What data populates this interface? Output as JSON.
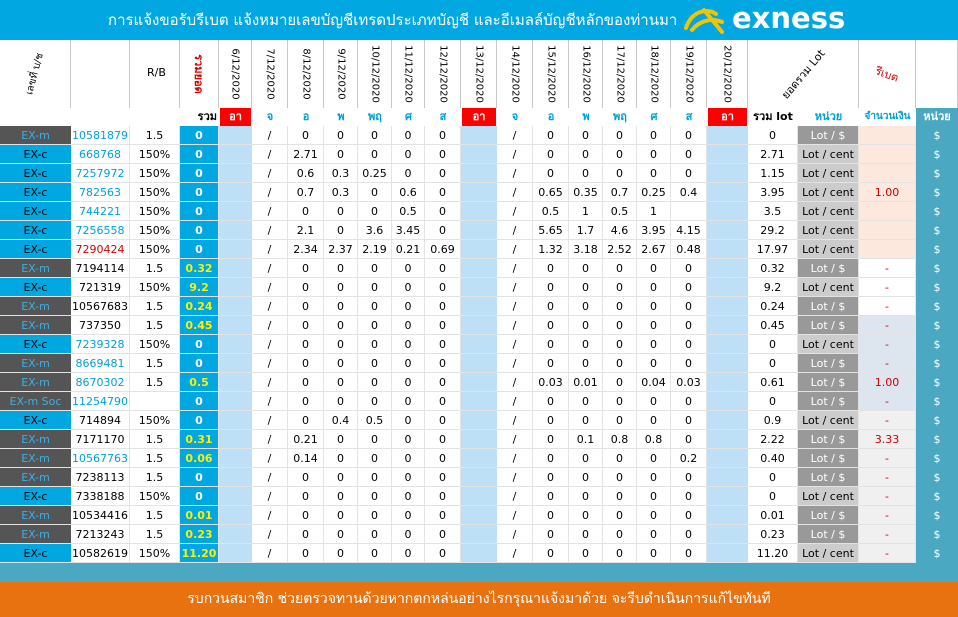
{
  "header": {
    "title": "การแจ้งขอรับรีเบต  แจ้งหมายเลขบัญชีเทรดประเภทบัญชี และอีเมลล์บัญชีหลักของท่านมา",
    "brand": "exness",
    "brand_color": "#00a7e1"
  },
  "columns": {
    "account": "เลขที่ บ/ช",
    "rb": "R/B",
    "total_lot_vertical": "รวมยอด",
    "dates": [
      "6/12/2020",
      "7/12/2020",
      "8/12/2020",
      "9/12/2020",
      "10/12/2020",
      "11/12/2020",
      "12/12/2020",
      "13/12/2020",
      "14/12/2020",
      "15/12/2020",
      "16/12/2020",
      "17/12/2020",
      "18/12/2020",
      "19/12/2020",
      "20/12/2020"
    ],
    "sum_lot": "ยอดรวม Lot",
    "rebate": "รีเบต"
  },
  "band": {
    "total_lot": "รวม lot",
    "days": [
      "อา",
      "จ",
      "อ",
      "พ",
      "พฤ",
      "ศ",
      "ส",
      "อา",
      "จ",
      "อ",
      "พ",
      "พฤ",
      "ศ",
      "ส",
      "อา"
    ],
    "sum_lot": "รวม lot",
    "unit": "หน่วย",
    "amount": "จำนวนเงิน",
    "currency": "หน่วย"
  },
  "rows": [
    {
      "type": "EX-m",
      "account": "10581879",
      "rb": "1.5",
      "total": "0",
      "w1": [
        "/",
        "0",
        "0",
        "0",
        "0",
        "0"
      ],
      "w2": [
        "/",
        "0",
        "0",
        "0",
        "0",
        "0"
      ],
      "sum": "0",
      "unit": "Lot / $",
      "rebate": "",
      "cur": "$"
    },
    {
      "type": "EX-c",
      "account": "668768",
      "rb": "150%",
      "total": "0",
      "w1": [
        "/",
        "2.71",
        "0",
        "0",
        "0",
        "0"
      ],
      "w2": [
        "/",
        "0",
        "0",
        "0",
        "0",
        "0"
      ],
      "sum": "2.71",
      "unit": "Lot / cent",
      "rebate": "",
      "cur": "$"
    },
    {
      "type": "EX-c",
      "account": "7257972",
      "rb": "150%",
      "total": "0",
      "w1": [
        "/",
        "0.6",
        "0.3",
        "0.25",
        "0",
        "0"
      ],
      "w2": [
        "/",
        "0",
        "0",
        "0",
        "0",
        "0"
      ],
      "sum": "1.15",
      "unit": "Lot / cent",
      "rebate": "",
      "cur": "$"
    },
    {
      "type": "EX-c",
      "account": "782563",
      "rb": "150%",
      "total": "0",
      "w1": [
        "/",
        "0.7",
        "0.3",
        "0",
        "0.6",
        "0"
      ],
      "w2": [
        "/",
        "0.65",
        "0.35",
        "0.7",
        "0.25",
        "0.4"
      ],
      "sum": "3.95",
      "unit": "Lot / cent",
      "rebate": "1.00",
      "cur": "$"
    },
    {
      "type": "EX-c",
      "account": "744221",
      "rb": "150%",
      "total": "0",
      "w1": [
        "/",
        "0",
        "0",
        "0",
        "0.5",
        "0"
      ],
      "w2": [
        "/",
        "0.5",
        "1",
        "0.5",
        "1",
        ""
      ],
      "sum": "3.5",
      "unit": "Lot / cent",
      "rebate": "",
      "cur": "$"
    },
    {
      "type": "EX-c",
      "account": "7256558",
      "rb": "150%",
      "total": "0",
      "w1": [
        "/",
        "2.1",
        "0",
        "3.6",
        "3.45",
        "0"
      ],
      "w2": [
        "/",
        "5.65",
        "1.7",
        "4.6",
        "3.95",
        "4.15"
      ],
      "sum": "29.2",
      "unit": "Lot / cent",
      "rebate": "",
      "cur": "$"
    },
    {
      "type": "EX-c",
      "account": "7290424",
      "rb": "150%",
      "total": "0",
      "w1": [
        "/",
        "2.34",
        "2.37",
        "2.19",
        "0.21",
        "0.69"
      ],
      "w2": [
        "/",
        "1.32",
        "3.18",
        "2.52",
        "2.67",
        "0.48"
      ],
      "sum": "17.97",
      "unit": "Lot / cent",
      "rebate": "",
      "cur": "$"
    },
    {
      "type": "EX-m",
      "account": "7194114",
      "rb": "1.5",
      "total": "0.32",
      "w1": [
        "/",
        "0",
        "0",
        "0",
        "0",
        "0"
      ],
      "w2": [
        "/",
        "0",
        "0",
        "0",
        "0",
        "0"
      ],
      "sum": "0.32",
      "unit": "Lot / $",
      "rebate": "-",
      "cur": "$"
    },
    {
      "type": "EX-c",
      "account": "721319",
      "rb": "150%",
      "total": "9.2",
      "w1": [
        "/",
        "0",
        "0",
        "0",
        "0",
        "0"
      ],
      "w2": [
        "/",
        "0",
        "0",
        "0",
        "0",
        "0"
      ],
      "sum": "9.2",
      "unit": "Lot / cent",
      "rebate": "-",
      "cur": "$"
    },
    {
      "type": "EX-m",
      "account": "10567683",
      "rb": "1.5",
      "total": "0.24",
      "w1": [
        "/",
        "0",
        "0",
        "0",
        "0",
        "0"
      ],
      "w2": [
        "/",
        "0",
        "0",
        "0",
        "0",
        "0"
      ],
      "sum": "0.24",
      "unit": "Lot / $",
      "rebate": "-",
      "cur": "$"
    },
    {
      "type": "EX-m",
      "account": "737350",
      "rb": "1.5",
      "total": "0.45",
      "w1": [
        "/",
        "0",
        "0",
        "0",
        "0",
        "0"
      ],
      "w2": [
        "/",
        "0",
        "0",
        "0",
        "0",
        "0"
      ],
      "sum": "0.45",
      "unit": "Lot / $",
      "rebate": "-",
      "cur": "$"
    },
    {
      "type": "EX-c",
      "account": "7239328",
      "rb": "150%",
      "total": "0",
      "w1": [
        "/",
        "0",
        "0",
        "0",
        "0",
        "0"
      ],
      "w2": [
        "/",
        "0",
        "0",
        "0",
        "0",
        "0"
      ],
      "sum": "0",
      "unit": "Lot / cent",
      "rebate": "-",
      "cur": "$"
    },
    {
      "type": "EX-m",
      "account": "8669481",
      "rb": "1.5",
      "total": "0",
      "w1": [
        "/",
        "0",
        "0",
        "0",
        "0",
        "0"
      ],
      "w2": [
        "/",
        "0",
        "0",
        "0",
        "0",
        "0"
      ],
      "sum": "0",
      "unit": "Lot / $",
      "rebate": "-",
      "cur": "$"
    },
    {
      "type": "EX-m",
      "account": "8670302",
      "rb": "1.5",
      "total": "0.5",
      "w1": [
        "/",
        "0",
        "0",
        "0",
        "0",
        "0"
      ],
      "w2": [
        "/",
        "0.03",
        "0.01",
        "0",
        "0.04",
        "0.03"
      ],
      "sum": "0.61",
      "unit": "Lot / $",
      "rebate": "1.00",
      "cur": "$"
    },
    {
      "type": "EX-m Soc",
      "account": "11254790",
      "rb": "",
      "total": "0",
      "w1": [
        "/",
        "0",
        "0",
        "0",
        "0",
        "0"
      ],
      "w2": [
        "/",
        "0",
        "0",
        "0",
        "0",
        "0"
      ],
      "sum": "0",
      "unit": "Lot / $",
      "rebate": "-",
      "cur": "$"
    },
    {
      "type": "EX-c",
      "account": "714894",
      "rb": "150%",
      "total": "0",
      "w1": [
        "/",
        "0",
        "0.4",
        "0.5",
        "0",
        "0"
      ],
      "w2": [
        "/",
        "0",
        "0",
        "0",
        "0",
        "0"
      ],
      "sum": "0.9",
      "unit": "Lot / cent",
      "rebate": "-",
      "cur": "$"
    },
    {
      "type": "EX-m",
      "account": "7171170",
      "rb": "1.5",
      "total": "0.31",
      "w1": [
        "/",
        "0.21",
        "0",
        "0",
        "0",
        "0"
      ],
      "w2": [
        "/",
        "0",
        "0.1",
        "0.8",
        "0.8",
        "0"
      ],
      "sum": "2.22",
      "unit": "Lot / $",
      "rebate": "3.33",
      "cur": "$"
    },
    {
      "type": "EX-m",
      "account": "10567763",
      "rb": "1.5",
      "total": "0.06",
      "w1": [
        "/",
        "0.14",
        "0",
        "0",
        "0",
        "0"
      ],
      "w2": [
        "/",
        "0",
        "0",
        "0",
        "0",
        "0.2"
      ],
      "sum": "0.40",
      "unit": "Lot / $",
      "rebate": "-",
      "cur": "$"
    },
    {
      "type": "EX-m",
      "account": "7238113",
      "rb": "1.5",
      "total": "0",
      "w1": [
        "/",
        "0",
        "0",
        "0",
        "0",
        "0"
      ],
      "w2": [
        "/",
        "0",
        "0",
        "0",
        "0",
        "0"
      ],
      "sum": "0",
      "unit": "Lot / $",
      "rebate": "-",
      "cur": "$"
    },
    {
      "type": "EX-c",
      "account": "7338188",
      "rb": "150%",
      "total": "0",
      "w1": [
        "/",
        "0",
        "0",
        "0",
        "0",
        "0"
      ],
      "w2": [
        "/",
        "0",
        "0",
        "0",
        "0",
        "0"
      ],
      "sum": "0",
      "unit": "Lot / cent",
      "rebate": "-",
      "cur": "$"
    },
    {
      "type": "EX-m",
      "account": "10534416",
      "rb": "1.5",
      "total": "0.01",
      "w1": [
        "/",
        "0",
        "0",
        "0",
        "0",
        "0"
      ],
      "w2": [
        "/",
        "0",
        "0",
        "0",
        "0",
        "0"
      ],
      "sum": "0.01",
      "unit": "Lot / $",
      "rebate": "-",
      "cur": "$"
    },
    {
      "type": "EX-m",
      "account": "7213243",
      "rb": "1.5",
      "total": "0.23",
      "w1": [
        "/",
        "0",
        "0",
        "0",
        "0",
        "0"
      ],
      "w2": [
        "/",
        "0",
        "0",
        "0",
        "0",
        "0"
      ],
      "sum": "0.23",
      "unit": "Lot / $",
      "rebate": "-",
      "cur": "$"
    },
    {
      "type": "EX-c",
      "account": "10582619",
      "rb": "150%",
      "total": "11.20",
      "w1": [
        "/",
        "0",
        "0",
        "0",
        "0",
        "0"
      ],
      "w2": [
        "/",
        "0",
        "0",
        "0",
        "0",
        "0"
      ],
      "sum": "11.20",
      "unit": "Lot / cent",
      "rebate": "-",
      "cur": "$"
    }
  ],
  "footer": {
    "note": "รบกวนสมาชิก ช่วยตรวจทานด้วยหากตกหล่นอย่างไรกรุณาแจ้งมาด้วย จะรีบดำเนินการแก้ไขทันที"
  }
}
